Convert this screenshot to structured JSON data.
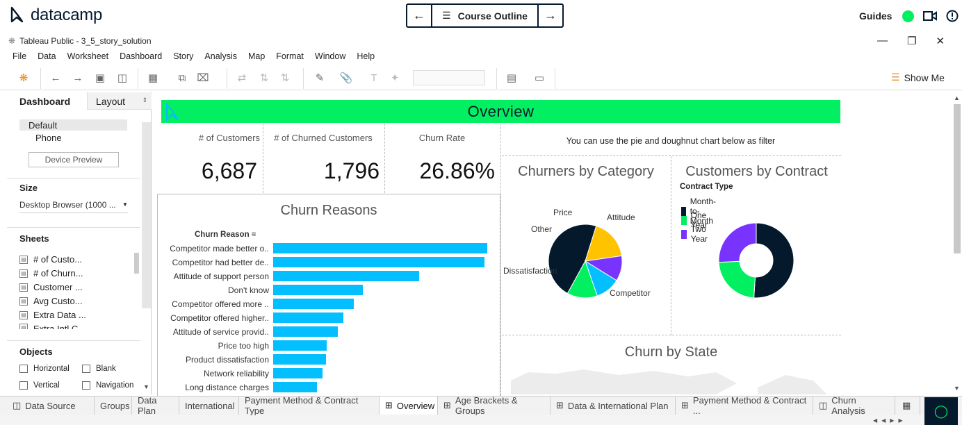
{
  "datacamp": {
    "logo_text": "datacamp",
    "course_outline_label": "Course Outline",
    "guides_label": "Guides",
    "prev_arrow": "←",
    "next_arrow": "→"
  },
  "window": {
    "title": "Tableau Public - 3_5_story_solution"
  },
  "menu": [
    "File",
    "Data",
    "Worksheet",
    "Dashboard",
    "Story",
    "Analysis",
    "Map",
    "Format",
    "Window",
    "Help"
  ],
  "toolbar": {
    "show_me_label": "Show Me"
  },
  "left_pane": {
    "tab_dashboard": "Dashboard",
    "tab_layout": "Layout",
    "device_default": "Default",
    "device_phone": "Phone",
    "device_preview_button": "Device Preview",
    "size_heading": "Size",
    "size_value": "Desktop Browser (1000 ...",
    "sheets_heading": "Sheets",
    "sheets": [
      "# of Custo...",
      "# of Churn...",
      "Customer ...",
      "Avg Custo...",
      "Extra Data ...",
      "Extra Intl C..."
    ],
    "objects_heading": "Objects",
    "objects": [
      "Horizontal",
      "Blank",
      "Vertical",
      "Navigation"
    ]
  },
  "dashboard": {
    "banner_title": "Overview",
    "kpis": [
      {
        "label": "# of Customers",
        "value": "6,687"
      },
      {
        "label": "# of Churned Customers",
        "value": "1,796"
      },
      {
        "label": "Churn Rate",
        "value": "26.86%"
      }
    ],
    "filter_note": "You can use the pie and doughnut chart below as filter",
    "churn_reasons_title": "Churn Reasons",
    "churn_reason_header": "Churn Reason",
    "churners_title": "Churners by Category",
    "contract_title": "Customers by Contract",
    "contract_legend_title": "Contract Type",
    "state_title": "Churn by State"
  },
  "chart_data": [
    {
      "type": "bar",
      "title": "Churn Reasons",
      "xlabel": "",
      "ylabel": "Churn Reason",
      "categories": [
        "Competitor made better o..",
        "Competitor had better de..",
        "Attitude of support person",
        "Don't know",
        "Competitor offered more ..",
        "Competitor offered higher..",
        "Attitude of service provid..",
        "Price too high",
        "Product dissatisfaction",
        "Network reliability",
        "Long distance charges"
      ],
      "values": [
        311,
        307,
        212,
        130,
        117,
        102,
        94,
        78,
        77,
        72,
        64
      ]
    },
    {
      "type": "pie",
      "title": "Churners by Category",
      "categories": [
        "Competitor",
        "Dissatisfaction",
        "Other",
        "Price",
        "Attitude"
      ],
      "values": [
        841,
        321,
        200,
        196,
        238
      ],
      "colors": [
        "#05192d",
        "#ffc300",
        "#7933ff",
        "#03bfff",
        "#03ef62"
      ]
    },
    {
      "type": "pie",
      "title": "Customers by Contract",
      "legend_title": "Contract Type",
      "categories": [
        "Month-to-Month",
        "One Year",
        "Two Year"
      ],
      "values": [
        3411,
        1550,
        1726
      ],
      "colors": [
        "#05192d",
        "#03ef62",
        "#7933ff"
      ]
    }
  ],
  "tabs": [
    "Data Source",
    "Groups",
    "Data Plan",
    "International",
    "Payment Method & Contract Type",
    "Overview",
    "Age Brackets & Groups",
    "Data & International Plan",
    "Payment Method & Contract ...",
    "Churn Analysis"
  ]
}
